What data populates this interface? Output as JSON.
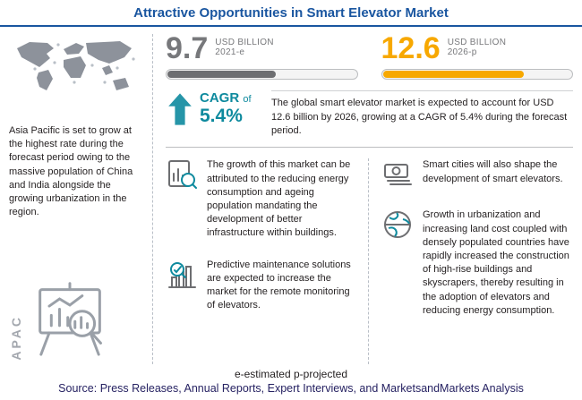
{
  "title": "Attractive Opportunities in Smart Elevator Market",
  "chart_data": {
    "type": "bar",
    "title": "Attractive Opportunities in Smart Elevator Market",
    "categories": [
      "2021-e",
      "2026-p"
    ],
    "values": [
      9.7,
      12.6
    ],
    "unit": "USD BILLION",
    "cagr_percent": 5.4,
    "value_notes": "e-estimated p-projected",
    "bar_colors": [
      "#6d6e71",
      "#f7a800"
    ]
  },
  "left_panel": {
    "region_note": "Asia Pacific is set to grow at the highest rate during the forecast period owing to the massive population of China and India alongside the growing urbanization in the region.",
    "region_tag": "APAC"
  },
  "stats": {
    "current": {
      "value": "9.7",
      "unit": "USD BILLION",
      "period": "2021-e"
    },
    "projected": {
      "value": "12.6",
      "unit": "USD BILLION",
      "period": "2026-p"
    },
    "cagr": {
      "label": "CAGR",
      "of": "of",
      "value": "5.4%"
    },
    "summary": "The global smart elevator market is expected to account for USD 12.6 billion by 2026, growing at a CAGR of 5.4% during the forecast period."
  },
  "bullets": [
    {
      "icon": "bar-chart-document-icon",
      "text": "The growth of this market can be attributed to the reducing energy consumption and ageing population mandating the development of better infrastructure within buildings."
    },
    {
      "icon": "chart-magnifier-icon",
      "text": "Predictive maintenance solutions are expected to increase the market for the remote monitoring of elevators."
    },
    {
      "icon": "banknotes-icon",
      "text": "Smart cities will also shape the development of smart elevators."
    },
    {
      "icon": "globe-icon",
      "text": "Growth in urbanization and increasing land cost coupled with densely populated countries have rapidly increased the construction of high-rise buildings and skyscrapers, thereby resulting in the adoption of elevators and reducing energy consumption."
    }
  ],
  "footer": {
    "notes": "e-estimated p-projected",
    "source": "Source: Press Releases, Annual Reports, Expert Interviews, and MarketsandMarkets Analysis"
  },
  "colors": {
    "title_blue": "#1a56a0",
    "current_gray": "#77787b",
    "projected_yellow": "#f7a800",
    "cagr_teal": "#0e8a9e",
    "source_navy": "#262262"
  }
}
